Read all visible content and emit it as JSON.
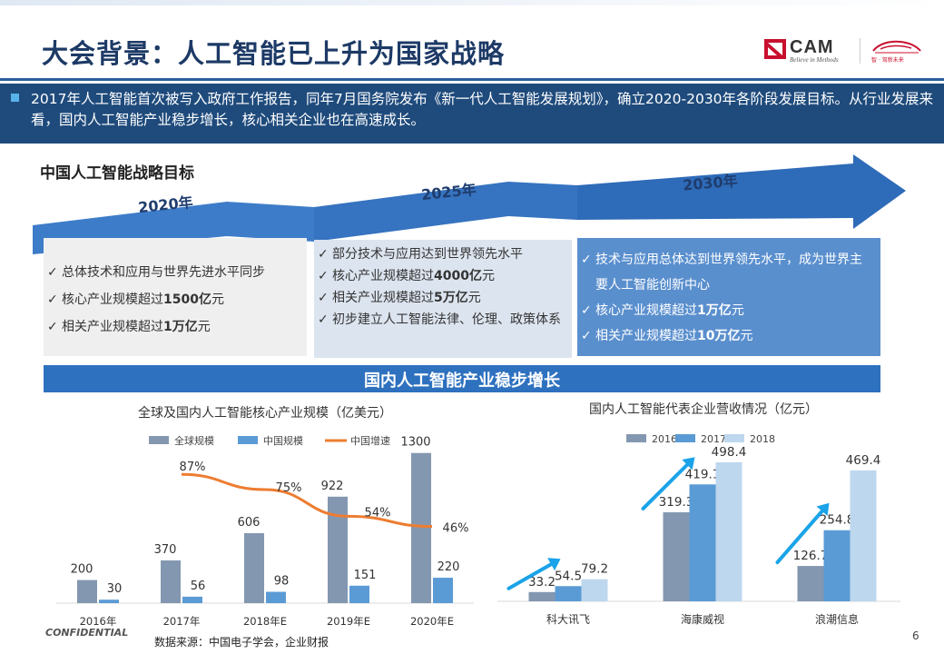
{
  "header": {
    "title": "大会背景：人工智能已上升为国家战略",
    "logo_text": "CAM",
    "logo_tagline": "Believe in Methods",
    "logo_car_text": "智 · 驾新未来"
  },
  "intro": {
    "text": "2017年人工智能首次被写入政府工作报告，同年7月国务院发布《新一代人工智能发展规划》，确立2020-2030年各阶段发展目标。从行业发展来看，国内人工智能产业稳步增长，核心相关企业也在高速成长。"
  },
  "strategy": {
    "title": "中国人工智能战略目标",
    "check": "✓",
    "stages": [
      {
        "year": "2020年",
        "items": [
          {
            "text": "总体技术和应用与世界先进水平同步",
            "bold": ""
          },
          {
            "text": "核心产业规模超过",
            "bold": "1500亿",
            "tail": "元"
          },
          {
            "text": "相关产业规模超过",
            "bold": "1万亿",
            "tail": "元"
          }
        ]
      },
      {
        "year": "2025年",
        "items": [
          {
            "text": "部分技术与应用达到世界领先水平",
            "bold": ""
          },
          {
            "text": "核心产业规模超过",
            "bold": "4000亿",
            "tail": "元"
          },
          {
            "text": "相关产业规模超过",
            "bold": "5万亿",
            "tail": "元"
          },
          {
            "text": "初步建立人工智能法律、伦理、政策体系",
            "bold": ""
          }
        ]
      },
      {
        "year": "2030年",
        "items": [
          {
            "text": "技术与应用总体达到世界领先水平，成为世界主要人工智能创新中心",
            "bold": ""
          },
          {
            "text": "核心产业规模超过",
            "bold": "1万亿",
            "tail": "元"
          },
          {
            "text": "相关产业规模超过",
            "bold": "10万亿",
            "tail": "元"
          }
        ]
      }
    ]
  },
  "growth_banner": "国内人工智能产业稳步增长",
  "colors": {
    "navy": "#1f4b7c",
    "global": "#8497b0",
    "china": "#5b9bd5",
    "growth_line": "#ed7d31",
    "y2016": "#8497b0",
    "y2017": "#5b9bd5",
    "y2018": "#bdd7ee",
    "trend_arrow": "#1aa3e8"
  },
  "chart_data": [
    {
      "type": "bar",
      "title": "全球及国内人工智能核心产业规模（亿美元）",
      "categories": [
        "2016年",
        "2017年",
        "2018年E",
        "2019年E",
        "2020年E"
      ],
      "series": [
        {
          "name": "全球规模",
          "values": [
            200,
            370,
            606,
            922,
            1300
          ]
        },
        {
          "name": "中国规模",
          "values": [
            30,
            56,
            98,
            151,
            220
          ]
        }
      ],
      "line_series": {
        "name": "中国增速",
        "categories": [
          "2017年",
          "2018年E",
          "2019年E",
          "2020年E"
        ],
        "values": [
          87,
          75,
          54,
          46
        ],
        "labels": [
          "87%",
          "75%",
          "54%",
          "46%"
        ]
      },
      "ylim": [
        0,
        1400
      ],
      "legend": "top",
      "grid": false
    },
    {
      "type": "bar",
      "title": "国内人工智能代表企业营收情况（亿元）",
      "categories": [
        "科大讯飞",
        "海康威视",
        "浪潮信息"
      ],
      "series": [
        {
          "name": "2016",
          "values": [
            33.2,
            319.3,
            126.7
          ]
        },
        {
          "name": "2017",
          "values": [
            54.5,
            419.1,
            254.8
          ]
        },
        {
          "name": "2018",
          "values": [
            79.2,
            498.4,
            469.4
          ]
        }
      ],
      "ylim": [
        0,
        560
      ],
      "legend": "top",
      "grid": false
    }
  ],
  "footer": {
    "confidential": "CONFIDENTIAL",
    "source": "数据来源：中国电子学会，企业财报",
    "page": "6"
  }
}
